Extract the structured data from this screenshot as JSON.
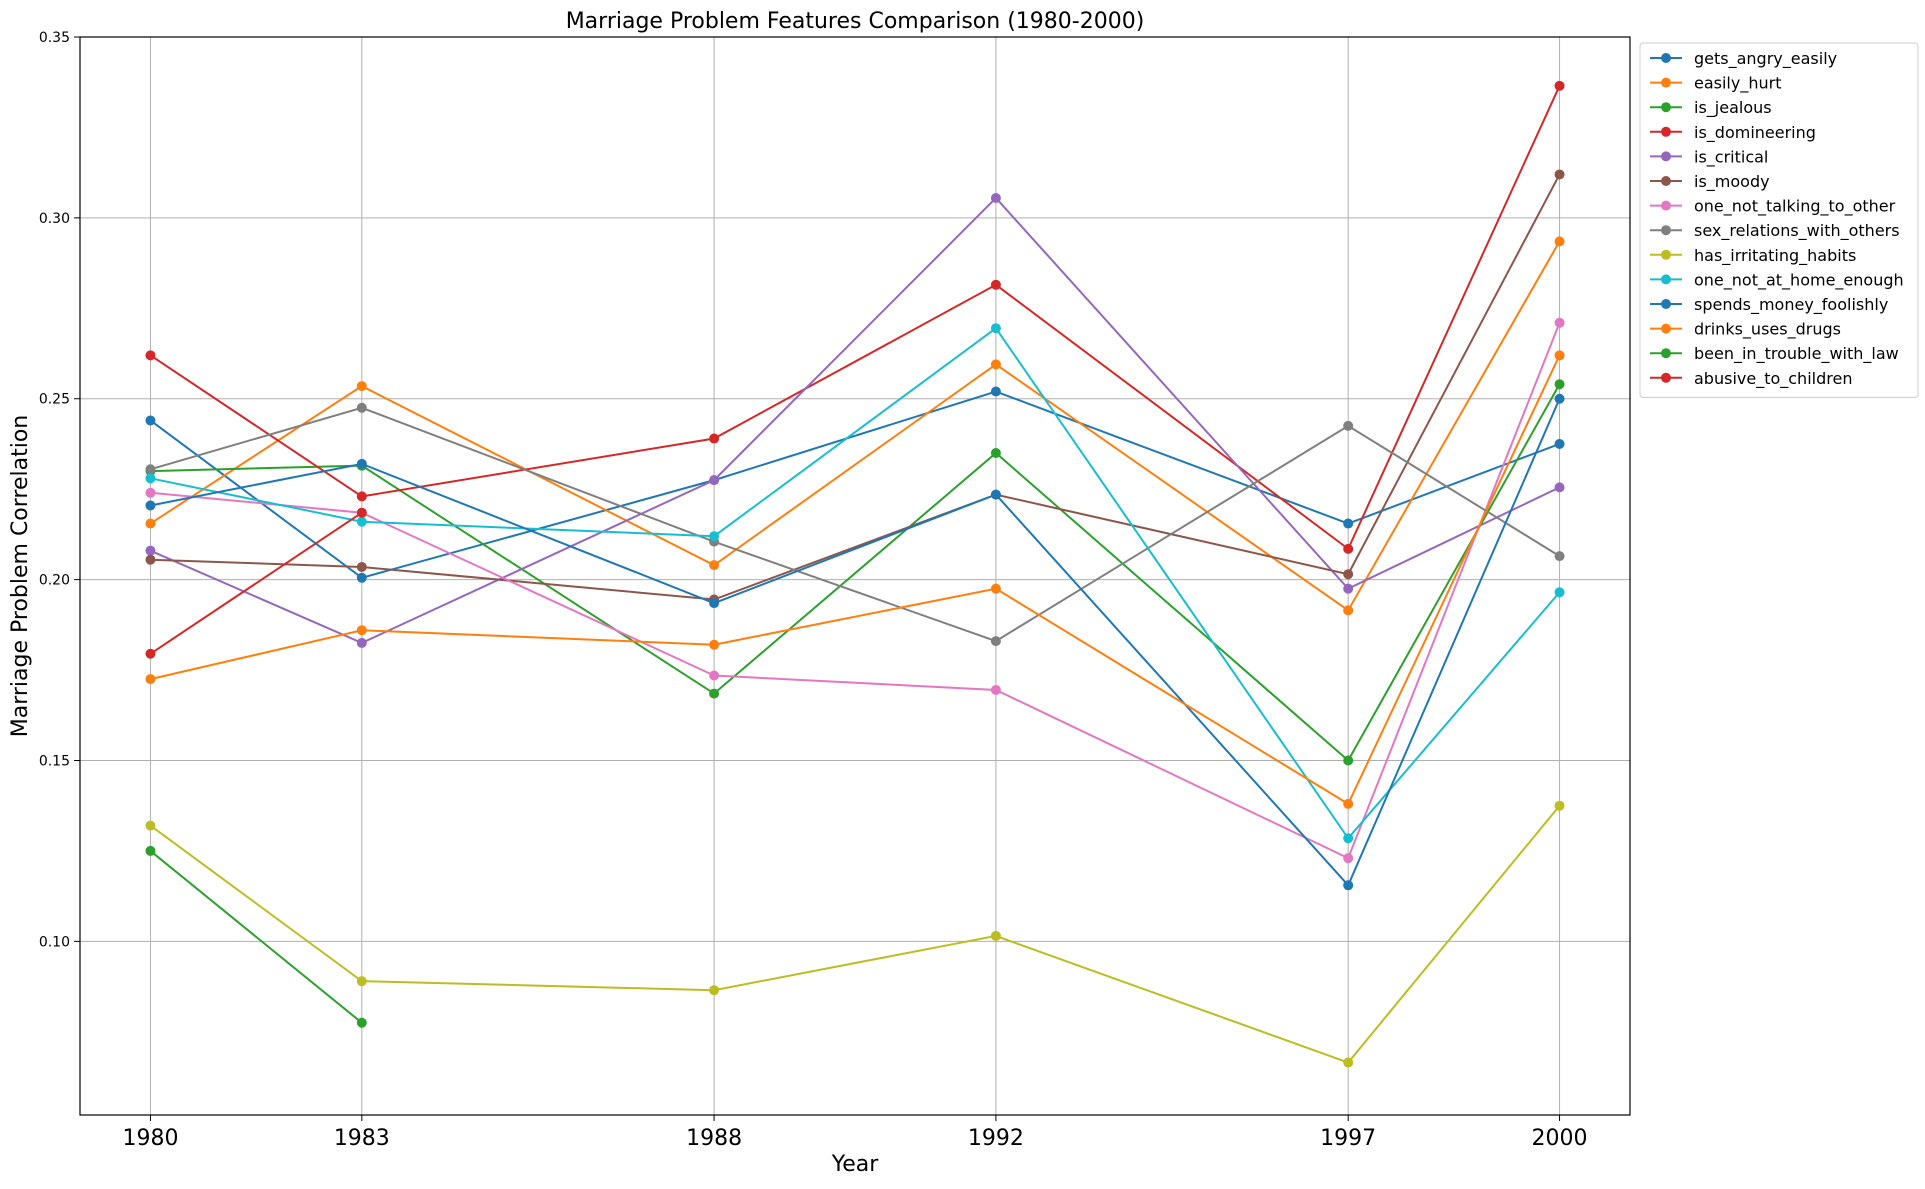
{
  "chart_data": {
    "type": "line",
    "title": "Marriage Problem Features Comparison (1980-2000)",
    "xlabel": "Year",
    "ylabel": "Marriage Problem Correlation",
    "x": [
      1980,
      1983,
      1988,
      1992,
      1997,
      2000
    ],
    "x_tick_labels": [
      "1980",
      "1983",
      "1988",
      "1992",
      "1997",
      "2000"
    ],
    "xlim": [
      1979,
      2001
    ],
    "ylim": [
      0.052,
      0.35
    ],
    "y_ticks": [
      0.1,
      0.15,
      0.2,
      0.25,
      0.3,
      0.35
    ],
    "y_tick_labels": [
      "0.10",
      "0.15",
      "0.20",
      "0.25",
      "0.30",
      "0.35"
    ],
    "grid": true,
    "legend_position": "outside-top-right",
    "series": [
      {
        "name": "gets_angry_easily",
        "color": "#1f77b4",
        "values": [
          0.244,
          0.2005,
          0.2275,
          0.252,
          0.2155,
          0.2375
        ]
      },
      {
        "name": "easily_hurt",
        "color": "#ff7f0e",
        "values": [
          0.2155,
          0.2535,
          0.204,
          0.2595,
          0.1915,
          0.2935
        ]
      },
      {
        "name": "is_jealous",
        "color": "#2ca02c",
        "values": [
          0.23,
          0.2315,
          0.1685,
          0.235,
          0.15,
          0.254
        ]
      },
      {
        "name": "is_domineering",
        "color": "#d62728",
        "values": [
          0.262,
          0.223,
          0.239,
          0.2815,
          0.2085,
          0.3365
        ]
      },
      {
        "name": "is_critical",
        "color": "#9467bd",
        "values": [
          0.208,
          0.1825,
          0.2275,
          0.3055,
          0.1975,
          0.2255
        ]
      },
      {
        "name": "is_moody",
        "color": "#8c564b",
        "values": [
          0.2055,
          0.2035,
          0.1945,
          0.2235,
          0.2015,
          0.312
        ]
      },
      {
        "name": "one_not_talking_to_other",
        "color": "#e377c2",
        "values": [
          0.224,
          0.2185,
          0.1735,
          0.1695,
          0.123,
          0.271
        ]
      },
      {
        "name": "sex_relations_with_others",
        "color": "#7f7f7f",
        "values": [
          0.2305,
          0.2475,
          0.2105,
          0.183,
          0.2425,
          0.2065
        ]
      },
      {
        "name": "has_irritating_habits",
        "color": "#bcbd22",
        "values": [
          0.132,
          0.089,
          0.0865,
          0.1015,
          0.0665,
          0.1375
        ]
      },
      {
        "name": "one_not_at_home_enough",
        "color": "#17becf",
        "values": [
          0.228,
          0.216,
          0.212,
          0.2695,
          0.1285,
          0.1965
        ]
      },
      {
        "name": "spends_money_foolishly",
        "color": "#1f77b4",
        "values": [
          0.2205,
          0.232,
          0.1935,
          0.2235,
          0.1155,
          0.25
        ]
      },
      {
        "name": "drinks_uses_drugs",
        "color": "#ff7f0e",
        "values": [
          0.1725,
          0.186,
          0.182,
          0.1975,
          0.138,
          0.262
        ]
      },
      {
        "name": "been_in_trouble_with_law",
        "color": "#2ca02c",
        "values": [
          0.125,
          0.0775,
          null,
          null,
          null,
          null
        ]
      },
      {
        "name": "abusive_to_children",
        "color": "#d62728",
        "values": [
          0.1795,
          0.2185,
          null,
          null,
          null,
          null
        ]
      }
    ]
  }
}
